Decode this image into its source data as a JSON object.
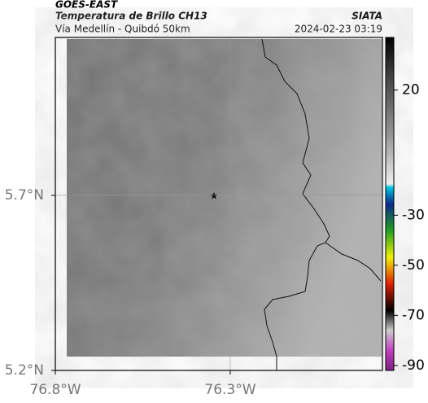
{
  "header": {
    "source": "GOES-EAST",
    "title": "Temperatura de Brillo CH13",
    "subtitle": "Vía Medellín - Quibdó 50km",
    "agency": "SIATA",
    "timestamp": "2024-02-23 03:19"
  },
  "map": {
    "xlim": [
      -76.8,
      -75.865
    ],
    "ylim": [
      5.2,
      6.151
    ],
    "xticks": [
      {
        "value": -76.8,
        "label": "76.8°W"
      },
      {
        "value": -76.3,
        "label": "76.3°W"
      }
    ],
    "yticks": [
      {
        "value": 5.2,
        "label": "5.2°N"
      },
      {
        "value": 5.7,
        "label": "5.7°N"
      }
    ],
    "grid": true
  },
  "colorbar": {
    "range": [
      -92,
      41
    ],
    "ticks": [
      20,
      -30,
      -50,
      -70,
      -90
    ]
  }
}
